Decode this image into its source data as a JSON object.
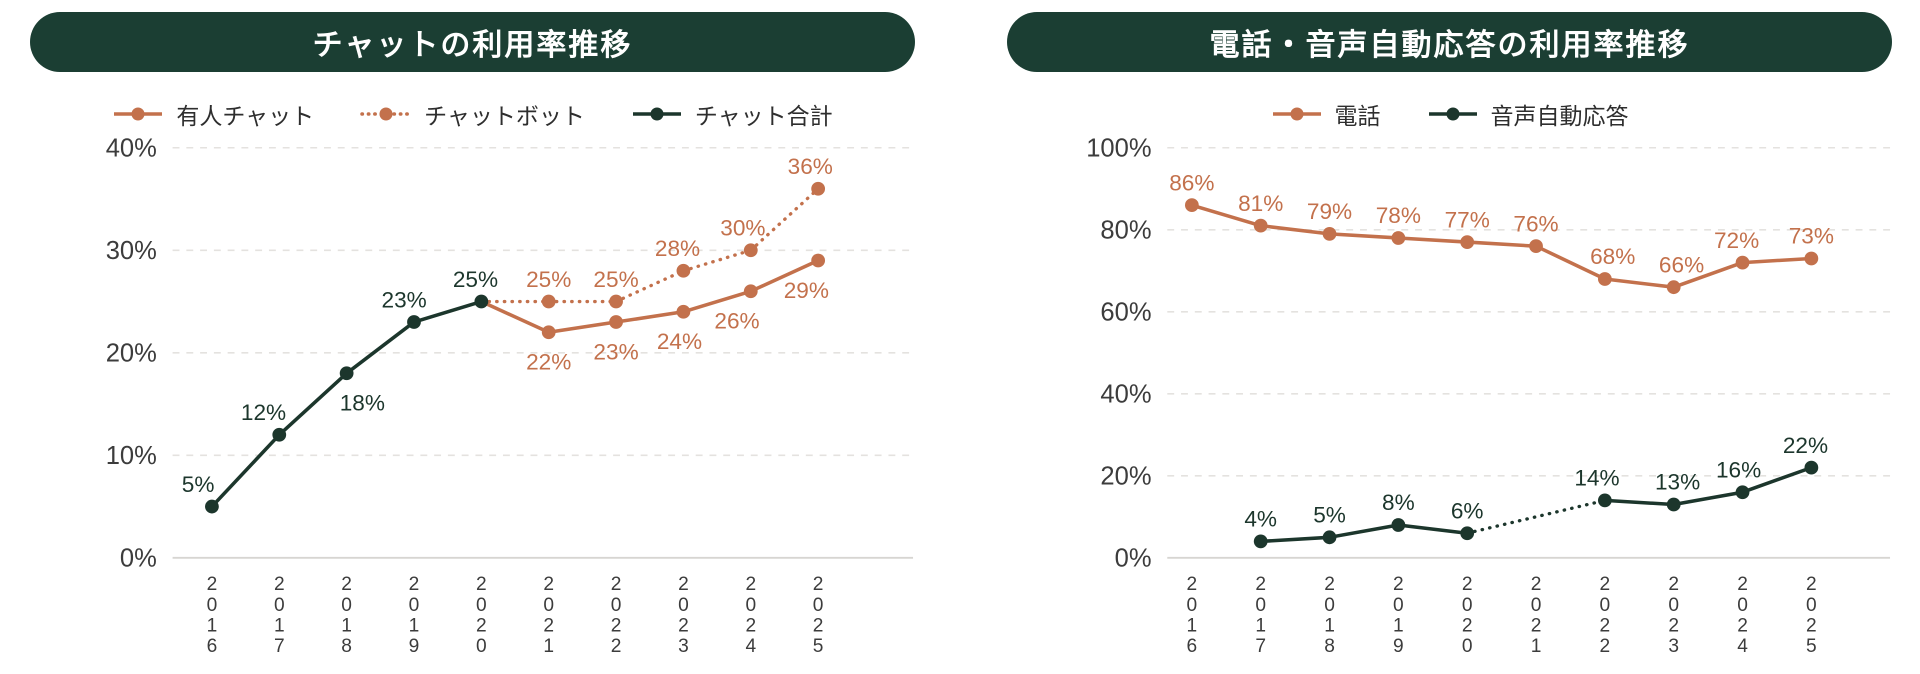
{
  "colors": {
    "orange": "#C3714C",
    "green": "#1C362C",
    "pill": "#1B3E33",
    "grid": "#E4E2DF",
    "axis": "#D7D5D2",
    "tick_text": "#3C3C3C",
    "legend_text": "#2E2E2E",
    "title_text": "#FFFFFF",
    "background": "#FFFFFF"
  },
  "charts": [
    {
      "id": "chat-usage",
      "title": "チャットの利用率推移",
      "legend": [
        {
          "label": "有人チャット",
          "color": "orange",
          "style": "solid"
        },
        {
          "label": "チャットボット",
          "color": "orange",
          "style": "dotted"
        },
        {
          "label": "チャット合計",
          "color": "green",
          "style": "solid"
        }
      ],
      "chart_data": {
        "type": "line",
        "x": [
          "2016",
          "2017",
          "2018",
          "2019",
          "2020",
          "2021",
          "2022",
          "2023",
          "2024",
          "2025"
        ],
        "ylim": [
          0,
          40
        ],
        "yticks": [
          0,
          10,
          20,
          30,
          40
        ],
        "ytick_labels": [
          "0%",
          "10%",
          "20%",
          "30%",
          "40%"
        ],
        "grid": true,
        "legend_position": "top",
        "series": [
          {
            "name": "有人チャット",
            "color": "orange",
            "dash": "solid",
            "points": [
              {
                "year": "2020",
                "value": 25,
                "marker": false
              },
              {
                "year": "2021",
                "value": 22,
                "label": "22%",
                "lp": "below"
              },
              {
                "year": "2022",
                "value": 23,
                "label": "23%",
                "lp": "below"
              },
              {
                "year": "2023",
                "value": 24,
                "label": "24%",
                "lp": "below",
                "dx": -4
              },
              {
                "year": "2024",
                "value": 26,
                "label": "26%",
                "lp": "below",
                "dx": -14
              },
              {
                "year": "2025",
                "value": 29,
                "label": "29%",
                "lp": "below",
                "dx": -12
              }
            ]
          },
          {
            "name": "チャットボット",
            "color": "orange",
            "dash": "dotted",
            "points": [
              {
                "year": "2020",
                "value": 25,
                "marker": false
              },
              {
                "year": "2021",
                "value": 25,
                "label": "25%"
              },
              {
                "year": "2022",
                "value": 25,
                "label": "25%"
              },
              {
                "year": "2023",
                "value": 28,
                "label": "28%",
                "dx": -6
              },
              {
                "year": "2024",
                "value": 30,
                "label": "30%",
                "dx": -8
              },
              {
                "year": "2025",
                "value": 36,
                "label": "36%",
                "dx": -8
              }
            ]
          },
          {
            "name": "チャット合計",
            "color": "green",
            "dash": "solid",
            "points": [
              {
                "year": "2016",
                "value": 5,
                "label": "5%",
                "dx": -14
              },
              {
                "year": "2017",
                "value": 12,
                "label": "12%",
                "dx": -16
              },
              {
                "year": "2018",
                "value": 18,
                "label": "18%",
                "lp": "below",
                "dx": 16
              },
              {
                "year": "2019",
                "value": 23,
                "label": "23%",
                "dx": -10
              },
              {
                "year": "2020",
                "value": 25,
                "label": "25%",
                "dx": -6
              }
            ]
          }
        ]
      }
    },
    {
      "id": "phone-ivr-usage",
      "title": "電話・音声自動応答の利用率推移",
      "legend": [
        {
          "label": "電話",
          "color": "orange",
          "style": "solid"
        },
        {
          "label": "音声自動応答",
          "color": "green",
          "style": "solid"
        }
      ],
      "chart_data": {
        "type": "line",
        "x": [
          "2016",
          "2017",
          "2018",
          "2019",
          "2020",
          "2021",
          "2022",
          "2023",
          "2024",
          "2025"
        ],
        "ylim": [
          0,
          100
        ],
        "yticks": [
          0,
          20,
          40,
          60,
          80,
          100
        ],
        "ytick_labels": [
          "0%",
          "20%",
          "40%",
          "60%",
          "80%",
          "100%"
        ],
        "grid": true,
        "legend_position": "top",
        "series": [
          {
            "name": "電話",
            "color": "orange",
            "dash": "solid",
            "points": [
              {
                "year": "2016",
                "value": 86,
                "label": "86%"
              },
              {
                "year": "2017",
                "value": 81,
                "label": "81%"
              },
              {
                "year": "2018",
                "value": 79,
                "label": "79%"
              },
              {
                "year": "2019",
                "value": 78,
                "label": "78%"
              },
              {
                "year": "2020",
                "value": 77,
                "label": "77%"
              },
              {
                "year": "2021",
                "value": 76,
                "label": "76%"
              },
              {
                "year": "2022",
                "value": 68,
                "label": "68%",
                "dx": 8
              },
              {
                "year": "2023",
                "value": 66,
                "label": "66%",
                "dx": 8
              },
              {
                "year": "2024",
                "value": 72,
                "label": "72%",
                "dx": -6
              },
              {
                "year": "2025",
                "value": 73,
                "label": "73%"
              }
            ]
          },
          {
            "name": "音声自動応答",
            "color": "green",
            "dash": "solid",
            "points": [
              {
                "year": "2017",
                "value": 4,
                "label": "4%"
              },
              {
                "year": "2018",
                "value": 5,
                "label": "5%"
              },
              {
                "year": "2019",
                "value": 8,
                "label": "8%"
              },
              {
                "year": "2020",
                "value": 6,
                "label": "6%"
              },
              {
                "year": "2022",
                "value": 14,
                "label": "14%",
                "dx": -8,
                "link": "dotted"
              },
              {
                "year": "2023",
                "value": 13,
                "label": "13%",
                "dx": 4
              },
              {
                "year": "2024",
                "value": 16,
                "label": "16%",
                "dx": -4
              },
              {
                "year": "2025",
                "value": 22,
                "label": "22%",
                "dx": -6
              }
            ]
          }
        ]
      }
    }
  ]
}
